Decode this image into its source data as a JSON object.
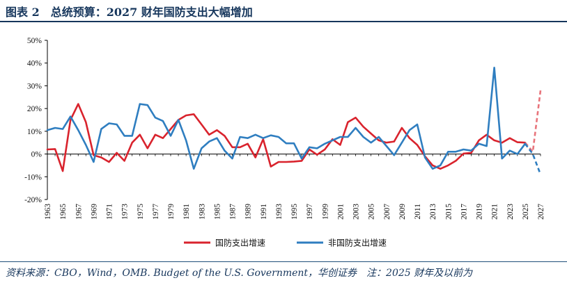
{
  "header": {
    "title": "图表 2　总统预算：2027 财年国防支出大幅增加"
  },
  "footer": {
    "source": "资料来源：CBO，Wind，OMB. Budget of the U.S. Government，华创证券　注：2025 财年及以前为"
  },
  "colors": {
    "defense": "#d9232d",
    "defense_forecast": "#e8747b",
    "nondefense": "#2f7ec0",
    "title": "#16365c"
  },
  "chart_data": {
    "type": "line",
    "title": "",
    "xlabel": "",
    "ylabel": "",
    "ylim": [
      -0.2,
      0.5
    ],
    "yticks": [
      "50%",
      "40%",
      "30%",
      "20%",
      "10%",
      "0%",
      "-10%",
      "-20%"
    ],
    "xlim": [
      1963,
      2027
    ],
    "x_tick_labels": [
      "1963",
      "1965",
      "1967",
      "1969",
      "1971",
      "1973",
      "1975",
      "1977",
      "1979",
      "1981",
      "1983",
      "1985",
      "1987",
      "1989",
      "1991",
      "1993",
      "1995",
      "1997",
      "1999",
      "2001",
      "2003",
      "2005",
      "2007",
      "2009",
      "2011",
      "2013",
      "2015",
      "2017",
      "2019",
      "2021",
      "2023",
      "2025",
      "2027"
    ],
    "legend_position": "bottom-center",
    "grid": false,
    "series": [
      {
        "name": "国防支出增速",
        "color": "#d9232d",
        "x": [
          1963,
          1964,
          1965,
          1966,
          1967,
          1968,
          1969,
          1970,
          1971,
          1972,
          1973,
          1974,
          1975,
          1976,
          1977,
          1978,
          1979,
          1980,
          1981,
          1982,
          1983,
          1984,
          1985,
          1986,
          1987,
          1988,
          1989,
          1990,
          1991,
          1992,
          1993,
          1994,
          1995,
          1996,
          1997,
          1998,
          1999,
          2000,
          2001,
          2002,
          2003,
          2004,
          2005,
          2006,
          2007,
          2008,
          2009,
          2010,
          2011,
          2012,
          2013,
          2014,
          2015,
          2016,
          2017,
          2018,
          2019,
          2020,
          2021,
          2022,
          2023,
          2024,
          2025
        ],
        "values": [
          0.02,
          0.022,
          -0.075,
          0.15,
          0.22,
          0.14,
          -0.005,
          -0.015,
          -0.035,
          0.005,
          -0.03,
          0.05,
          0.085,
          0.025,
          0.085,
          0.07,
          0.11,
          0.15,
          0.17,
          0.175,
          0.13,
          0.085,
          0.105,
          0.08,
          0.03,
          0.03,
          0.045,
          -0.015,
          0.065,
          -0.055,
          -0.035,
          -0.035,
          -0.033,
          -0.03,
          0.02,
          -0.003,
          0.02,
          0.065,
          0.04,
          0.14,
          0.16,
          0.12,
          0.09,
          0.06,
          0.05,
          0.055,
          0.115,
          0.07,
          0.04,
          -0.01,
          -0.05,
          -0.065,
          -0.05,
          -0.03,
          0.002,
          0.005,
          0.06,
          0.085,
          0.06,
          0.05,
          0.07,
          0.052,
          0.05
        ],
        "forecast": {
          "x": [
            2025,
            2026,
            2027
          ],
          "values": [
            0.05,
            0.01,
            0.28
          ]
        }
      },
      {
        "name": "非国防支出增速",
        "color": "#2f7ec0",
        "x": [
          1963,
          1964,
          1965,
          1966,
          1967,
          1968,
          1969,
          1970,
          1971,
          1972,
          1973,
          1974,
          1975,
          1976,
          1977,
          1978,
          1979,
          1980,
          1981,
          1982,
          1983,
          1984,
          1985,
          1986,
          1987,
          1988,
          1989,
          1990,
          1991,
          1992,
          1993,
          1994,
          1995,
          1996,
          1997,
          1998,
          1999,
          2000,
          2001,
          2002,
          2003,
          2004,
          2005,
          2006,
          2007,
          2008,
          2009,
          2010,
          2011,
          2012,
          2013,
          2014,
          2015,
          2016,
          2017,
          2018,
          2019,
          2020,
          2021,
          2022,
          2023,
          2024,
          2025
        ],
        "values": [
          0.105,
          0.115,
          0.11,
          0.165,
          0.105,
          0.04,
          -0.035,
          0.11,
          0.135,
          0.13,
          0.08,
          0.08,
          0.22,
          0.215,
          0.16,
          0.145,
          0.08,
          0.15,
          0.06,
          -0.065,
          0.025,
          0.055,
          0.07,
          0.015,
          -0.02,
          0.075,
          0.07,
          0.085,
          0.07,
          0.082,
          0.075,
          0.047,
          0.047,
          -0.02,
          0.03,
          0.025,
          0.045,
          0.06,
          0.075,
          0.075,
          0.115,
          0.075,
          0.05,
          0.075,
          0.035,
          -0.005,
          0.05,
          0.105,
          0.13,
          -0.015,
          -0.065,
          -0.05,
          0.01,
          0.01,
          0.02,
          0.015,
          0.045,
          0.035,
          0.38,
          -0.02,
          0.015,
          0.0,
          0.045
        ],
        "forecast": {
          "x": [
            2025,
            2026,
            2027
          ],
          "values": [
            0.045,
            0.0,
            -0.09
          ]
        }
      }
    ]
  }
}
